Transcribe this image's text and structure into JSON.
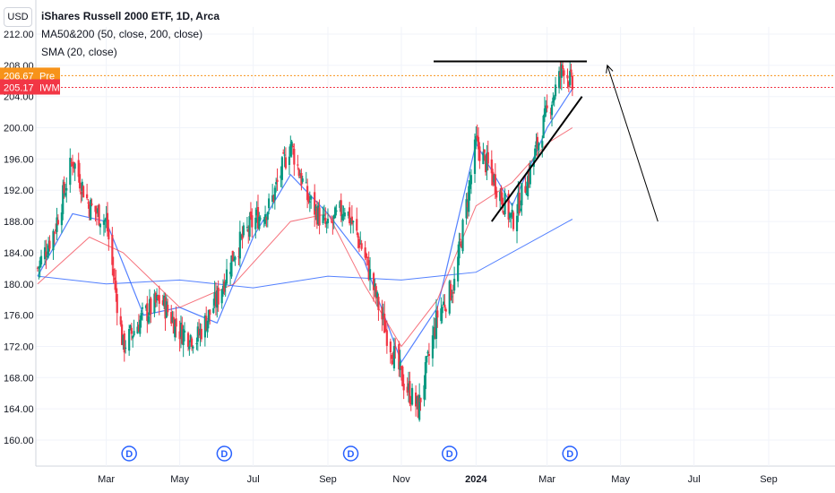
{
  "header": {
    "currency": "USD",
    "title": "iShares Russell 2000 ETF, 1D, Arca",
    "indicator1": "MA50&200 (50, close, 200, close)",
    "indicator2": "SMA (20, close)"
  },
  "price_labels": [
    {
      "value": "206.67",
      "tag": "Pre",
      "color": "#f7931a"
    },
    {
      "value": "205.17",
      "tag": "IWM",
      "color": "#f23645"
    }
  ],
  "chart_data": {
    "type": "line",
    "title": "iShares Russell 2000 ETF, 1D, Arca",
    "y_ticks": [
      "212.00",
      "208.00",
      "204.00",
      "200.00",
      "196.00",
      "192.00",
      "188.00",
      "184.00",
      "180.00",
      "176.00",
      "172.00",
      "168.00",
      "164.00",
      "160.00"
    ],
    "x_ticks": [
      "Mar",
      "May",
      "Jul",
      "Sep",
      "Nov",
      "2024",
      "Mar",
      "May",
      "Jul",
      "Sep"
    ],
    "ylim": [
      158,
      214
    ],
    "series": [
      {
        "name": "IWM close",
        "x": [
          "2023-01-03",
          "2023-01-17",
          "2023-02-01",
          "2023-02-15",
          "2023-03-01",
          "2023-03-15",
          "2023-04-01",
          "2023-04-15",
          "2023-05-01",
          "2023-05-15",
          "2023-06-01",
          "2023-06-15",
          "2023-07-01",
          "2023-07-15",
          "2023-08-01",
          "2023-08-15",
          "2023-09-01",
          "2023-09-15",
          "2023-10-01",
          "2023-10-15",
          "2023-11-01",
          "2023-11-15",
          "2023-12-01",
          "2023-12-15",
          "2024-01-02",
          "2024-01-15",
          "2024-02-01",
          "2024-02-15",
          "2024-03-01",
          "2024-03-15",
          "2024-03-22"
        ],
        "values": [
          182,
          187,
          196,
          190,
          188,
          172,
          176,
          178,
          174,
          173,
          178,
          184,
          188,
          190,
          198,
          191,
          187,
          190,
          184,
          176,
          168,
          164,
          176,
          180,
          198,
          194,
          188,
          194,
          202,
          208,
          205.17
        ]
      },
      {
        "name": "SMA 20",
        "x": [
          "2023-01-03",
          "2023-02-01",
          "2023-03-01",
          "2023-04-01",
          "2023-05-01",
          "2023-06-01",
          "2023-07-01",
          "2023-08-01",
          "2023-09-01",
          "2023-10-01",
          "2023-11-01",
          "2023-12-01",
          "2024-01-02",
          "2024-02-01",
          "2024-03-01",
          "2024-03-22"
        ],
        "values": [
          181,
          189,
          188,
          176,
          177,
          175,
          186,
          194,
          189,
          183,
          170,
          177,
          198,
          190,
          200,
          205
        ]
      },
      {
        "name": "MA 50",
        "x": [
          "2023-01-03",
          "2023-02-15",
          "2023-03-15",
          "2023-05-01",
          "2023-06-15",
          "2023-08-01",
          "2023-09-01",
          "2023-10-01",
          "2023-11-01",
          "2023-12-01",
          "2024-01-02",
          "2024-02-01",
          "2024-03-01",
          "2024-03-22"
        ],
        "values": [
          180,
          186,
          184,
          177,
          180,
          188,
          189,
          180,
          172,
          178,
          190,
          193,
          198,
          200
        ]
      },
      {
        "name": "MA 200",
        "x": [
          "2023-01-03",
          "2023-03-01",
          "2023-05-01",
          "2023-07-01",
          "2023-09-01",
          "2023-11-01",
          "2024-01-02",
          "2024-03-22"
        ],
        "values": [
          181,
          180,
          180.5,
          179.5,
          181,
          180.5,
          181.5,
          188.3
        ]
      }
    ],
    "drawings": [
      {
        "type": "horizontal line",
        "value": 208.5
      },
      {
        "type": "trend line",
        "from": [
          "2024-01-15",
          188
        ],
        "to": [
          "2024-03-30",
          204
        ]
      },
      {
        "type": "arrow",
        "from": [
          "2024-06-01",
          188
        ],
        "to": [
          "2024-04-20",
          208
        ]
      }
    ]
  }
}
